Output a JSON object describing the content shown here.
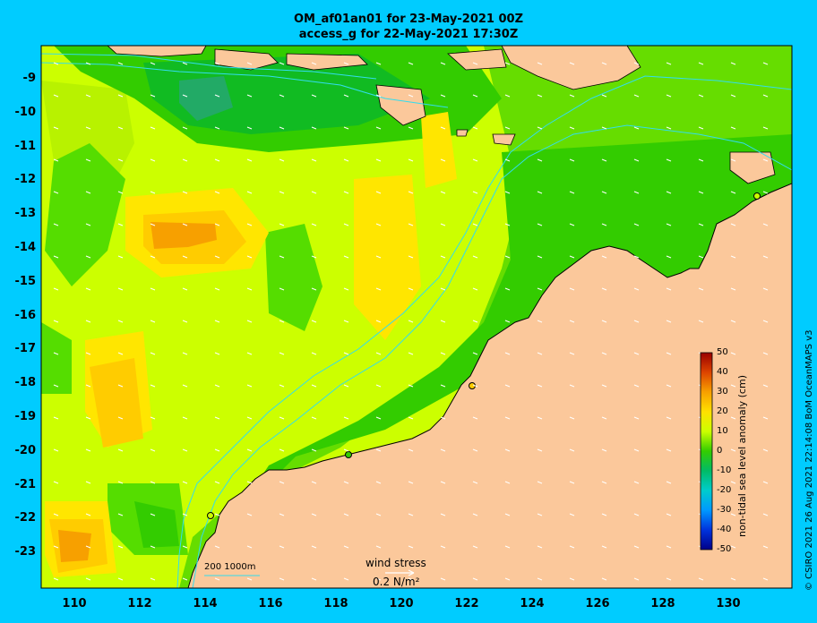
{
  "title_line1": "OM_af01an01 for 23-May-2021 00Z",
  "title_line2": "access_g for 22-May-2021 17:30Z",
  "credit": "© CSIRO 2021   26 Aug 2021 22:14:08 BoM OceanMAPS v3",
  "y_ticks": [
    "-9",
    "-10",
    "-11",
    "-12",
    "-13",
    "-14",
    "-15",
    "-16",
    "-17",
    "-18",
    "-19",
    "-20",
    "-21",
    "-22",
    "-23"
  ],
  "x_ticks": [
    "110",
    "112",
    "114",
    "116",
    "118",
    "120",
    "122",
    "124",
    "126",
    "128",
    "130"
  ],
  "colorbar": {
    "title": "non-tidal sea level anomaly (cm)",
    "labels": [
      "50",
      "40",
      "30",
      "20",
      "10",
      "0",
      "-10",
      "-20",
      "-30",
      "-40",
      "-50"
    ]
  },
  "wind_legend": {
    "label": "wind stress",
    "unit": "0.2 N/m²"
  },
  "depth_legend": "200  1000m",
  "colors": {
    "land": "#fbc89b",
    "ocean_bg": "#00ccff",
    "yellow": "#ccff00",
    "green": "#33cc00"
  }
}
